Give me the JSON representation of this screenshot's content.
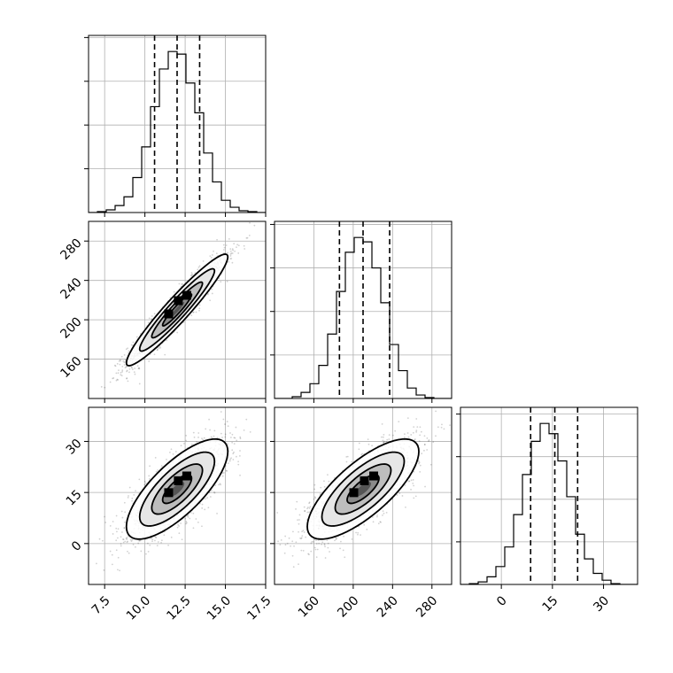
{
  "chart_data": {
    "type": "corner",
    "parameters": [
      {
        "mean": 12.0,
        "sd": 1.5,
        "range": [
          6.5,
          17.5
        ],
        "ticks": [
          7.5,
          10.0,
          12.5,
          15.0,
          17.5
        ],
        "tick_labels": [
          "7.5",
          "10.0",
          "12.5",
          "15.0",
          "17.5"
        ]
      },
      {
        "mean": 210,
        "sd": 27,
        "range": [
          120,
          300
        ],
        "ticks": [
          160,
          200,
          240,
          280
        ],
        "tick_labels": [
          "160",
          "200",
          "240",
          "280"
        ]
      },
      {
        "mean": 16,
        "sd": 7,
        "range": [
          -12,
          40
        ],
        "ticks": [
          0,
          15,
          30
        ],
        "tick_labels": [
          "0",
          "15",
          "30"
        ]
      }
    ],
    "quantiles": [
      [
        10.6,
        12.0,
        13.4
      ],
      [
        186,
        210,
        237
      ],
      [
        8.6,
        15.7,
        22.4
      ]
    ],
    "correlations": [
      [
        1,
        0.95,
        0.75
      ],
      [
        0.95,
        1,
        0.75
      ],
      [
        0.75,
        0.75,
        1
      ]
    ],
    "histograms": [
      {
        "edges": [
          6.5,
          7.05,
          7.6,
          8.15,
          8.7,
          9.25,
          9.8,
          10.35,
          10.9,
          11.45,
          12.0,
          12.55,
          13.1,
          13.65,
          14.2,
          14.75,
          15.3,
          15.85,
          16.4,
          16.95,
          17.5
        ],
        "counts": [
          0,
          1,
          3,
          8,
          18,
          40,
          75,
          121,
          164,
          184,
          181,
          148,
          114,
          68,
          35,
          14,
          6,
          2,
          1,
          0
        ]
      },
      {
        "edges": [
          120,
          129,
          138,
          147,
          156,
          165,
          174,
          183,
          192,
          201,
          210,
          219,
          228,
          237,
          246,
          255,
          264,
          273,
          282,
          291,
          300
        ],
        "counts": [
          0,
          0,
          2,
          7,
          17,
          38,
          74,
          123,
          168,
          185,
          180,
          150,
          110,
          62,
          32,
          12,
          4,
          1,
          0,
          0
        ]
      },
      {
        "edges": [
          -12,
          -9.4,
          -6.8,
          -4.2,
          -1.6,
          1.0,
          3.6,
          6.2,
          8.8,
          11.4,
          14.0,
          16.6,
          19.2,
          21.8,
          24.4,
          27.0,
          29.6,
          32.2,
          34.8,
          37.4,
          40.0
        ],
        "counts": [
          0,
          1,
          3,
          9,
          21,
          44,
          82,
          129,
          168,
          189,
          177,
          145,
          103,
          59,
          30,
          13,
          5,
          1,
          0,
          0
        ]
      }
    ],
    "grid": true
  }
}
